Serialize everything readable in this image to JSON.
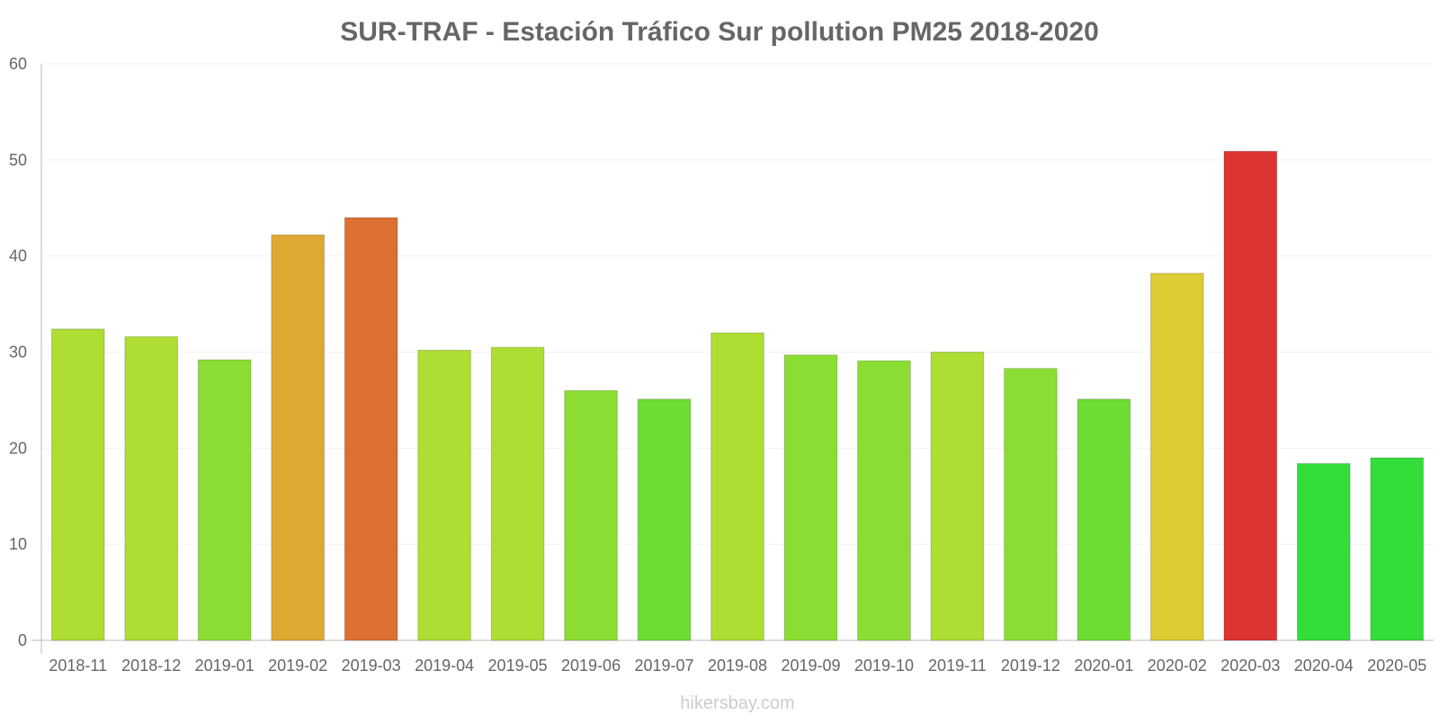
{
  "chart_data": {
    "type": "bar",
    "title": "SUR-TRAF - Estación Tráfico Sur pollution PM25 2018-2020",
    "xlabel": "",
    "ylabel": "",
    "ylim": [
      0,
      60
    ],
    "yticks": [
      "0",
      "10",
      "20",
      "30",
      "40",
      "50",
      "60"
    ],
    "yticks_values": [
      0,
      10,
      20,
      30,
      40,
      50,
      60
    ],
    "grid": true,
    "legend": "none",
    "categories": [
      "2018-11",
      "2018-12",
      "2019-01",
      "2019-02",
      "2019-03",
      "2019-04",
      "2019-05",
      "2019-06",
      "2019-07",
      "2019-08",
      "2019-09",
      "2019-10",
      "2019-11",
      "2019-12",
      "2020-01",
      "2020-02",
      "2020-03",
      "2020-04",
      "2020-05"
    ],
    "values": [
      32.4,
      31.6,
      29.2,
      42.2,
      44.0,
      30.2,
      30.5,
      26.0,
      25.1,
      32.0,
      29.7,
      29.1,
      30.0,
      28.3,
      25.1,
      38.2,
      50.9,
      18.4,
      19.0
    ],
    "colors": [
      "#aedd33",
      "#aedd33",
      "#8bdd33",
      "#dda933",
      "#dd6f33",
      "#aedd33",
      "#aedd33",
      "#8bdd33",
      "#6ddd33",
      "#aedd33",
      "#8bdd33",
      "#8bdd33",
      "#aedd33",
      "#8bdd33",
      "#6ddd33",
      "#dccb33",
      "#dd3333",
      "#33dd3a",
      "#33dd3a"
    ],
    "watermark": "hikersbay.com"
  }
}
